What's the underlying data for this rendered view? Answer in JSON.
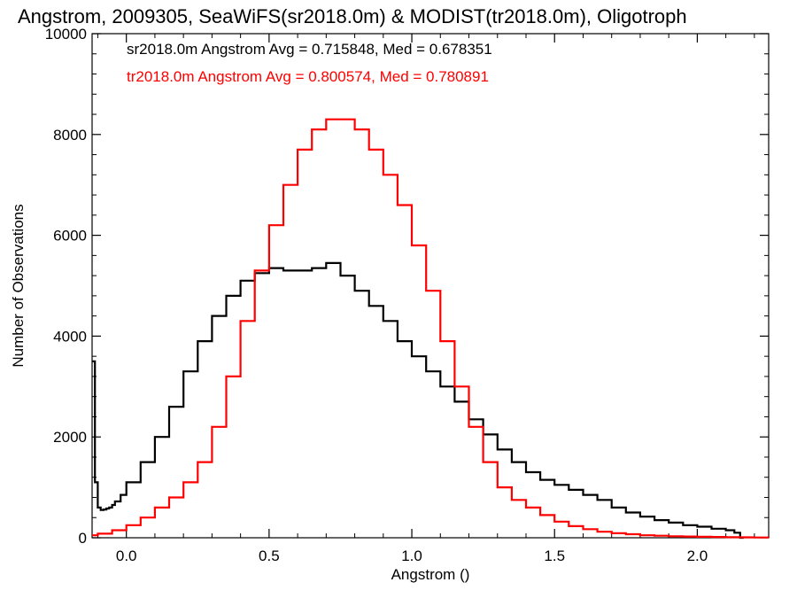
{
  "chart_data": {
    "type": "line",
    "step": true,
    "title": "Angstrom, 2009305, SeaWiFS(sr2018.0m) & MODIST(tr2018.0m), Oligotroph",
    "xlabel": "Angstrom ()",
    "ylabel": "Number of Observations",
    "xlim": [
      -0.12,
      2.25
    ],
    "ylim": [
      0,
      10000
    ],
    "xticks": [
      0.0,
      0.5,
      1.0,
      1.5,
      2.0
    ],
    "xtick_labels": [
      "0.0",
      "0.5",
      "1.0",
      "1.5",
      "2.0"
    ],
    "yticks": [
      0,
      2000,
      4000,
      6000,
      8000,
      10000
    ],
    "ytick_labels": [
      "0",
      "2000",
      "4000",
      "6000",
      "8000",
      "10000"
    ],
    "grid": false,
    "legend": "top-left",
    "annotations": [
      "sr2018.0m Angstrom Avg = 0.715848, Med = 0.678351",
      "tr2018.0m Angstrom Avg = 0.800574, Med = 0.780891"
    ],
    "series": [
      {
        "color": "#000000",
        "x": [
          -0.12,
          -0.11,
          -0.1,
          -0.09,
          -0.08,
          -0.07,
          -0.06,
          -0.05,
          -0.04,
          -0.02,
          0.0,
          0.05,
          0.1,
          0.15,
          0.2,
          0.25,
          0.3,
          0.35,
          0.4,
          0.45,
          0.5,
          0.55,
          0.6,
          0.65,
          0.7,
          0.75,
          0.8,
          0.85,
          0.9,
          0.95,
          1.0,
          1.05,
          1.1,
          1.15,
          1.2,
          1.25,
          1.3,
          1.35,
          1.4,
          1.45,
          1.5,
          1.55,
          1.6,
          1.65,
          1.7,
          1.75,
          1.8,
          1.85,
          1.9,
          1.95,
          2.0,
          2.05,
          2.1,
          2.13,
          2.15
        ],
        "y": [
          3500,
          1100,
          600,
          550,
          560,
          580,
          600,
          650,
          720,
          850,
          1100,
          1500,
          2000,
          2600,
          3300,
          3900,
          4400,
          4800,
          5100,
          5250,
          5350,
          5300,
          5300,
          5350,
          5450,
          5200,
          4900,
          4600,
          4300,
          3900,
          3600,
          3300,
          3000,
          2700,
          2350,
          2050,
          1750,
          1500,
          1300,
          1150,
          1050,
          950,
          850,
          750,
          600,
          500,
          420,
          350,
          300,
          250,
          220,
          180,
          150,
          100,
          0
        ]
      },
      {
        "color": "#ff0000",
        "x": [
          -0.12,
          -0.1,
          -0.05,
          0.0,
          0.05,
          0.1,
          0.15,
          0.2,
          0.25,
          0.3,
          0.35,
          0.4,
          0.45,
          0.5,
          0.55,
          0.6,
          0.65,
          0.7,
          0.75,
          0.78,
          0.8,
          0.85,
          0.9,
          0.95,
          1.0,
          1.05,
          1.1,
          1.15,
          1.2,
          1.25,
          1.3,
          1.35,
          1.4,
          1.45,
          1.5,
          1.55,
          1.6,
          1.65,
          1.7,
          1.75,
          1.8,
          1.85,
          1.9,
          1.95,
          2.0,
          2.05,
          2.1,
          2.15,
          2.2,
          2.25
        ],
        "y": [
          50,
          80,
          150,
          250,
          400,
          600,
          800,
          1100,
          1500,
          2200,
          3200,
          4300,
          5300,
          6200,
          7000,
          7700,
          8100,
          8300,
          8300,
          8300,
          8100,
          7700,
          7200,
          6600,
          5800,
          4900,
          3900,
          3000,
          2200,
          1500,
          1000,
          750,
          600,
          450,
          320,
          230,
          170,
          120,
          90,
          70,
          50,
          40,
          30,
          25,
          20,
          15,
          10,
          8,
          5,
          3
        ]
      }
    ]
  }
}
